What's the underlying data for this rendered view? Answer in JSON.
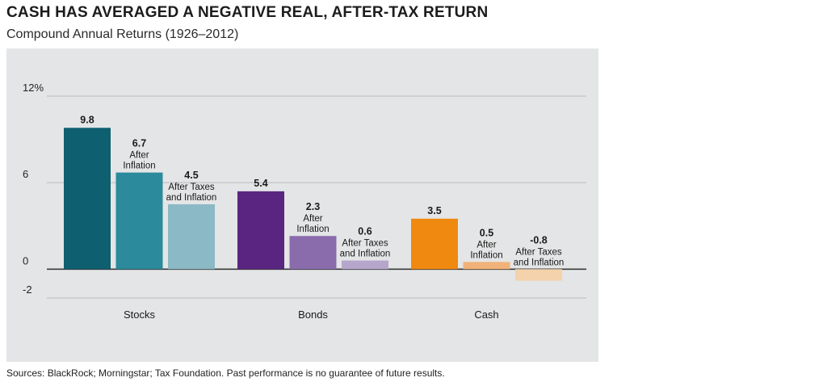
{
  "header": {
    "title": "CASH HAS AVERAGED A NEGATIVE REAL, AFTER-TAX RETURN",
    "subtitle": "Compound Annual Returns (1926–2012)"
  },
  "footer": {
    "source": "Sources: BlackRock; Morningstar; Tax Foundation. Past performance is no guarantee of future results."
  },
  "chart_data": {
    "type": "bar",
    "title": "CASH HAS AVERAGED A NEGATIVE REAL, AFTER-TAX RETURN",
    "subtitle": "Compound Annual Returns (1926–2012)",
    "xlabel": "",
    "ylabel": "",
    "ylim": [
      -2,
      12
    ],
    "yticks": [
      {
        "value": 12,
        "label": "12%"
      },
      {
        "value": 6,
        "label": "6"
      },
      {
        "value": 0,
        "label": "0"
      },
      {
        "value": -2,
        "label": "-2"
      }
    ],
    "grid": true,
    "categories": [
      "Stocks",
      "Bonds",
      "Cash"
    ],
    "groups": [
      {
        "category": "Stocks",
        "bars": [
          {
            "value": 9.8,
            "label": "9.8",
            "sub": [],
            "color": "#0e5f6f"
          },
          {
            "value": 6.7,
            "label": "6.7",
            "sub": [
              "After",
              "Inflation"
            ],
            "color": "#2b8a9b"
          },
          {
            "value": 4.5,
            "label": "4.5",
            "sub": [
              "After Taxes",
              "and Inflation"
            ],
            "color": "#8bb9c6"
          }
        ]
      },
      {
        "category": "Bonds",
        "bars": [
          {
            "value": 5.4,
            "label": "5.4",
            "sub": [],
            "color": "#5a2580"
          },
          {
            "value": 2.3,
            "label": "2.3",
            "sub": [
              "After",
              "Inflation"
            ],
            "color": "#8a6cad"
          },
          {
            "value": 0.6,
            "label": "0.6",
            "sub": [
              "After Taxes",
              "and Inflation"
            ],
            "color": "#b6a6cc"
          }
        ]
      },
      {
        "category": "Cash",
        "bars": [
          {
            "value": 3.5,
            "label": "3.5",
            "sub": [],
            "color": "#f0890f"
          },
          {
            "value": 0.5,
            "label": "0.5",
            "sub": [
              "After",
              "Inflation"
            ],
            "color": "#f0b278"
          },
          {
            "value": -0.8,
            "label": "-0.8",
            "sub": [
              "After Taxes",
              "and Inflation"
            ],
            "color": "#f4d2ac"
          }
        ]
      }
    ]
  }
}
